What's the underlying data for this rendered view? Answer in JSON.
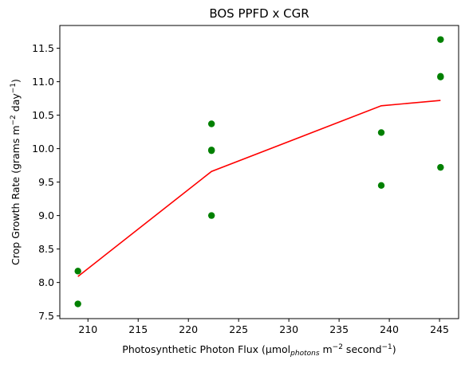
{
  "chart_data": {
    "type": "scatter",
    "title": "BOS PPFD x CGR",
    "xlabel": {
      "prefix": "Photosynthetic Photon Flux (µmol",
      "sub": "photons",
      "mid": " m",
      "sup1": "−2",
      "mid2": " second",
      "sup2": "−1",
      "suffix": ")"
    },
    "ylabel": {
      "prefix": "Crop Growth Rate (grams m",
      "sup1": "−2",
      "mid": " day",
      "sup2": "−1",
      "suffix": ")"
    },
    "xlim": [
      207.2,
      246.9
    ],
    "ylim": [
      7.46,
      11.84
    ],
    "xticks": [
      210,
      215,
      220,
      225,
      230,
      235,
      240,
      245
    ],
    "yticks": [
      7.5,
      8.0,
      8.5,
      9.0,
      9.5,
      10.0,
      10.5,
      11.0,
      11.5
    ],
    "xtick_labels": [
      "210",
      "215",
      "220",
      "225",
      "230",
      "235",
      "240",
      "245"
    ],
    "ytick_labels": [
      "7.5",
      "8.0",
      "8.5",
      "9.0",
      "9.5",
      "10.0",
      "10.5",
      "11.0",
      "11.5"
    ],
    "grid": false,
    "series": [
      {
        "kind": "scatter",
        "color": "#008000",
        "points": [
          {
            "x": 209.0,
            "y": 8.17
          },
          {
            "x": 209.0,
            "y": 7.68
          },
          {
            "x": 222.3,
            "y": 10.37
          },
          {
            "x": 222.3,
            "y": 9.97
          },
          {
            "x": 222.3,
            "y": 9.98
          },
          {
            "x": 222.3,
            "y": 9.0
          },
          {
            "x": 239.2,
            "y": 10.24
          },
          {
            "x": 239.2,
            "y": 9.45
          },
          {
            "x": 245.1,
            "y": 11.63
          },
          {
            "x": 245.1,
            "y": 11.08
          },
          {
            "x": 245.1,
            "y": 11.07
          },
          {
            "x": 245.1,
            "y": 9.72
          }
        ]
      },
      {
        "kind": "line",
        "color": "#ff0000",
        "points": [
          {
            "x": 209.0,
            "y": 8.09
          },
          {
            "x": 222.3,
            "y": 9.66
          },
          {
            "x": 239.2,
            "y": 10.64
          },
          {
            "x": 245.1,
            "y": 10.72
          }
        ]
      }
    ]
  }
}
